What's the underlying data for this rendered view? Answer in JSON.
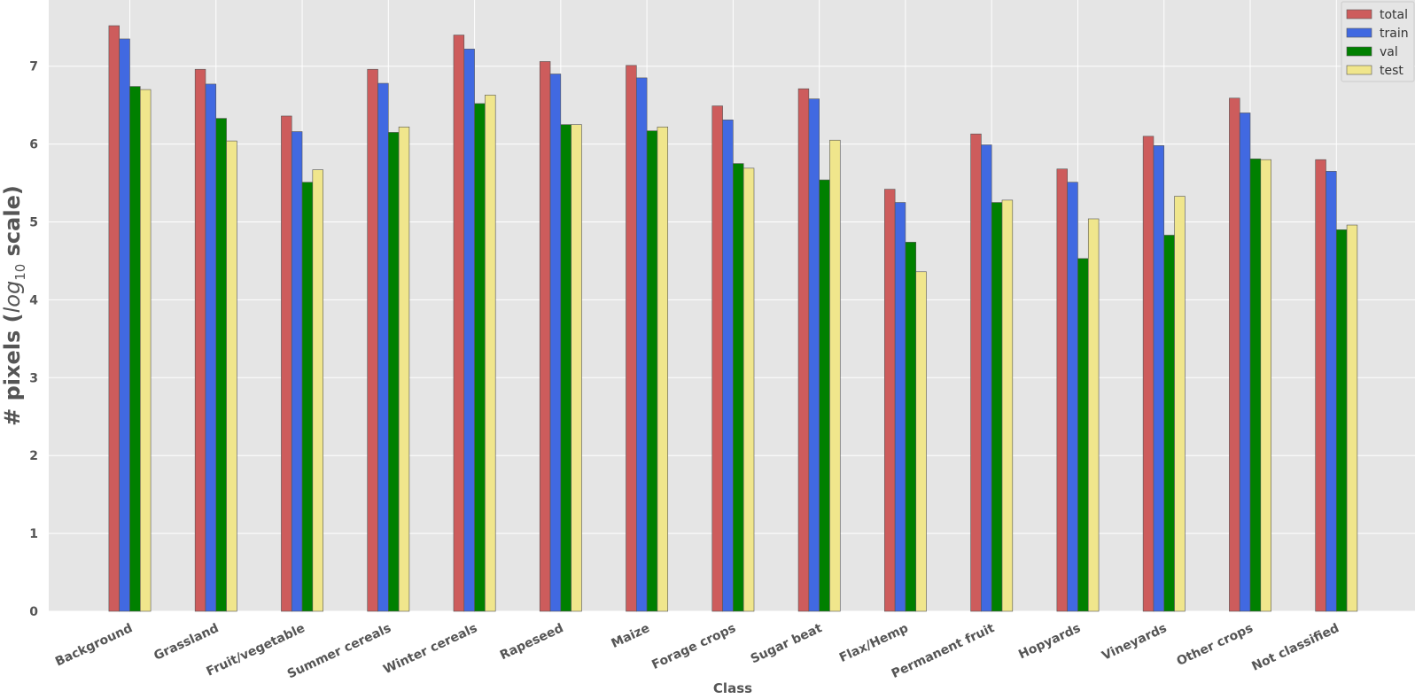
{
  "chart_data": {
    "type": "bar",
    "title": "",
    "xlabel": "Class",
    "ylabel_prefix": "# pixels (",
    "ylabel_math": "log",
    "ylabel_sub": "10",
    "ylabel_suffix": " scale)",
    "ylim": [
      0,
      7.85
    ],
    "yticks": [
      0,
      1,
      2,
      3,
      4,
      5,
      6,
      7
    ],
    "grid": true,
    "legend_position": "top-right",
    "categories": [
      "Background",
      "Grassland",
      "Fruit/vegetable",
      "Summer cereals",
      "Winter cereals",
      "Rapeseed",
      "Maize",
      "Forage crops",
      "Sugar beat",
      "Flax/Hemp",
      "Permanent fruit",
      "Hopyards",
      "Vineyards",
      "Other crops",
      "Not classified"
    ],
    "series": [
      {
        "name": "total",
        "color": "#cd5c5c",
        "values": [
          7.52,
          6.96,
          6.36,
          6.96,
          7.4,
          7.06,
          7.01,
          6.49,
          6.71,
          5.42,
          6.13,
          5.68,
          6.1,
          6.59,
          5.8
        ]
      },
      {
        "name": "train",
        "color": "#4169e1",
        "values": [
          7.35,
          6.77,
          6.16,
          6.78,
          7.22,
          6.9,
          6.85,
          6.31,
          6.58,
          5.25,
          5.99,
          5.51,
          5.98,
          6.4,
          5.65
        ]
      },
      {
        "name": "val",
        "color": "#008000",
        "values": [
          6.74,
          6.33,
          5.51,
          6.15,
          6.52,
          6.25,
          6.17,
          5.75,
          5.54,
          4.74,
          5.25,
          4.53,
          4.83,
          5.81,
          4.9
        ]
      },
      {
        "name": "test",
        "color": "#f0e68c",
        "values": [
          6.7,
          6.04,
          5.67,
          6.22,
          6.63,
          6.25,
          6.22,
          5.69,
          6.05,
          4.36,
          5.28,
          5.04,
          5.33,
          5.8,
          4.96
        ]
      }
    ],
    "colors": {
      "plot_background": "#e5e5e5",
      "grid": "#ffffff",
      "text": "#555555"
    }
  }
}
